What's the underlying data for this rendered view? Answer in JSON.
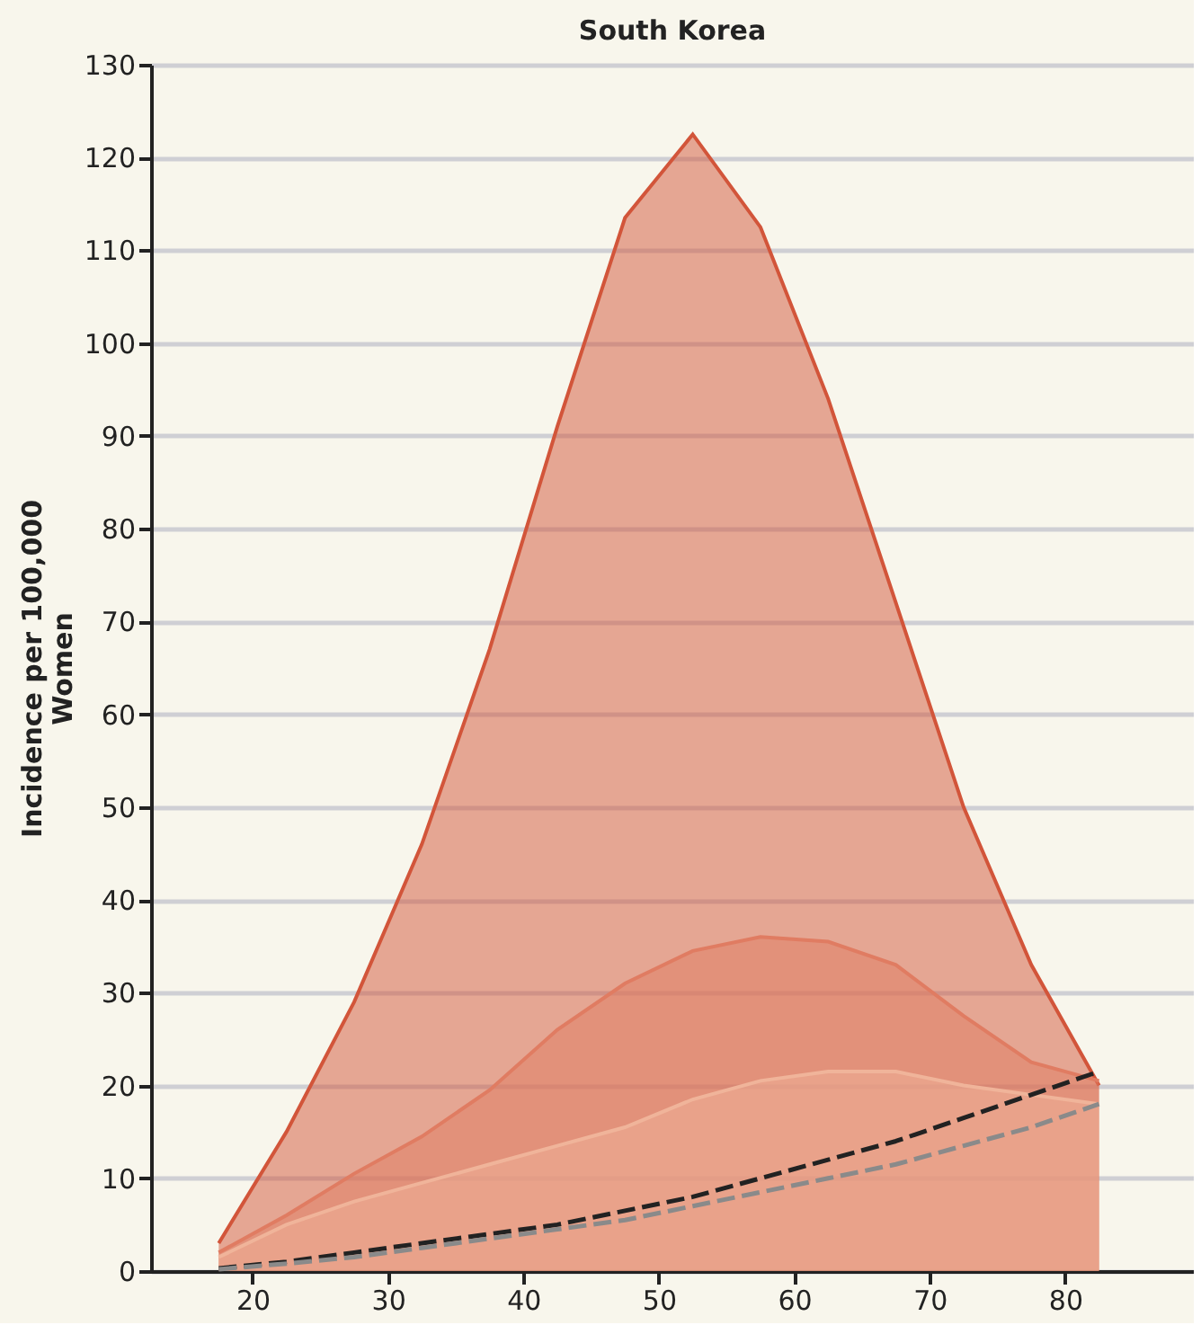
{
  "chart_data": {
    "type": "area",
    "title": "South Korea",
    "ylabel": "Incidence per 100,000 Women",
    "x": [
      17.5,
      22.5,
      27.5,
      32.5,
      37.5,
      42.5,
      47.5,
      52.5,
      57.5,
      62.5,
      67.5,
      72.5,
      77.5,
      82.5
    ],
    "series": [
      {
        "color": "#d2553a",
        "values": [
          3,
          15,
          29,
          46,
          67,
          91,
          113.5,
          122.5,
          112.5,
          94,
          72,
          50,
          33,
          20
        ]
      },
      {
        "color": "#e07c62",
        "values": [
          2,
          6,
          10.5,
          14.5,
          19.5,
          26,
          31,
          34.5,
          36,
          35.5,
          33,
          27.5,
          22.5,
          20.5
        ]
      },
      {
        "color": "#f0b49a",
        "values": [
          1.5,
          5,
          7.5,
          9.5,
          11.5,
          13.5,
          15.5,
          18.5,
          20.5,
          21.5,
          21.5,
          20,
          19,
          18
        ]
      },
      {
        "type": "line",
        "line_style": "dashed",
        "color": "#222222",
        "values": [
          0.3,
          1,
          2,
          3,
          4,
          5,
          6.5,
          8,
          10,
          12,
          14,
          16.5,
          19,
          21.5
        ]
      },
      {
        "type": "line",
        "line_style": "dashed",
        "color": "#8a8a8a",
        "values": [
          0.2,
          0.8,
          1.5,
          2.5,
          3.5,
          4.5,
          5.5,
          7,
          8.5,
          10,
          11.5,
          13.5,
          15.5,
          18
        ]
      }
    ],
    "xlim": [
      12.5,
      89.5
    ],
    "xticks": [
      20,
      30,
      40,
      50,
      60,
      70,
      80
    ],
    "ylim": [
      0,
      130
    ],
    "yticks": [
      0,
      10,
      20,
      30,
      40,
      50,
      60,
      70,
      80,
      90,
      100,
      110,
      120,
      130
    ],
    "grid": "y",
    "marker": "none"
  }
}
